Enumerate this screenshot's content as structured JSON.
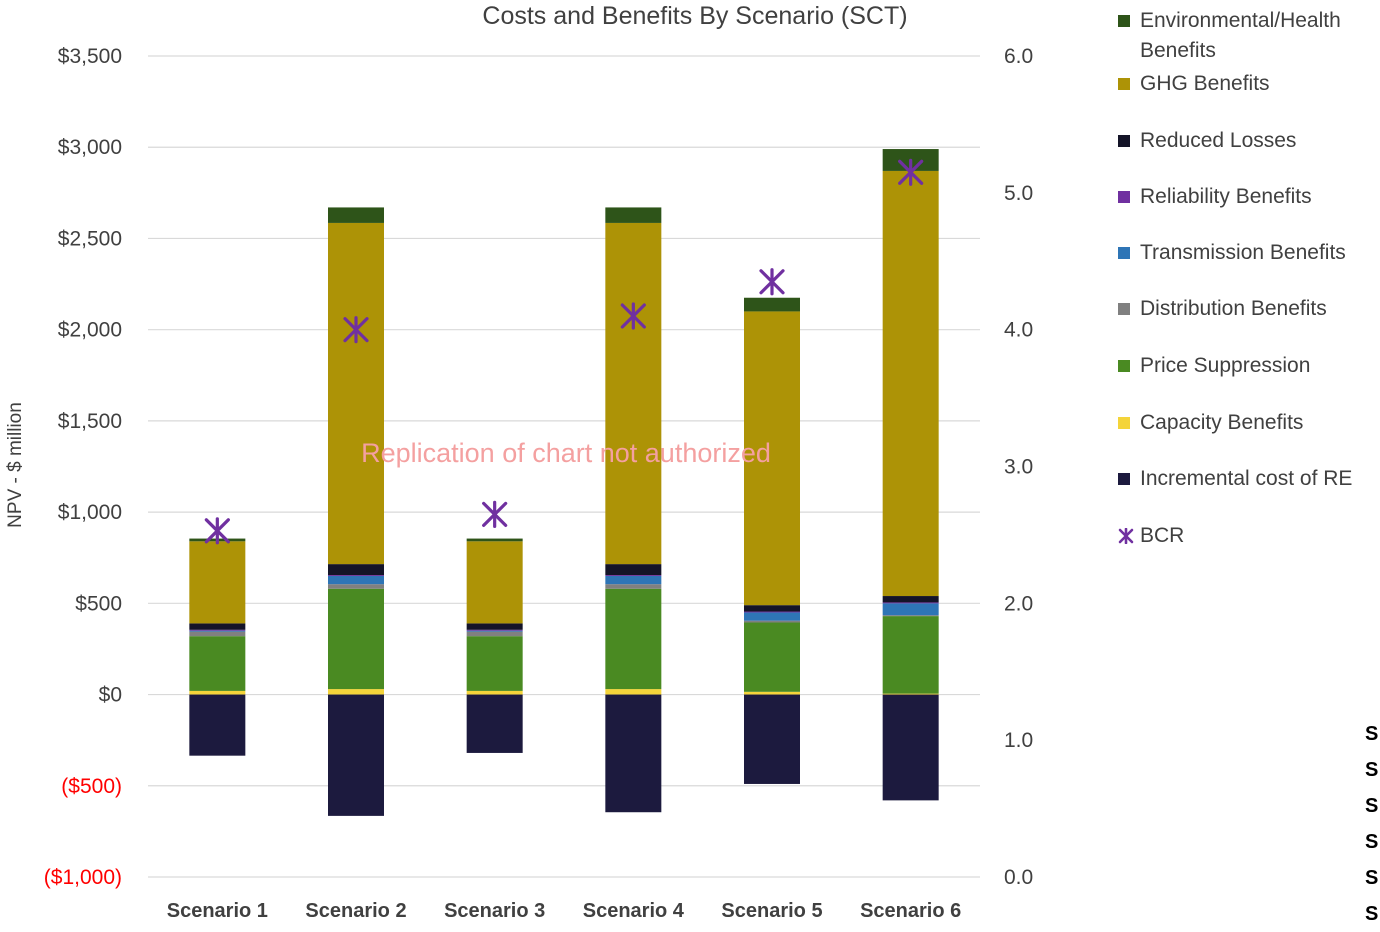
{
  "chart_data": {
    "type": "bar",
    "stacked": true,
    "title": "Costs and Benefits By Scenario (SCT)",
    "ylabel": "NPV - $ million",
    "ylim": [
      -1000,
      3500
    ],
    "y2lim": [
      0.0,
      6.0
    ],
    "y_ticks": [
      -1000,
      -500,
      0,
      500,
      1000,
      1500,
      2000,
      2500,
      3000,
      3500
    ],
    "y_tick_labels": [
      "($1,000)",
      "($500)",
      "$0",
      "$500",
      "$1,000",
      "$1,500",
      "$2,000",
      "$2,500",
      "$3,000",
      "$3,500"
    ],
    "y2_tick_labels": [
      "0.0",
      "1.0",
      "2.0",
      "3.0",
      "4.0",
      "5.0",
      "6.0"
    ],
    "y2_ticks": [
      0,
      1,
      2,
      3,
      4,
      5,
      6
    ],
    "categories": [
      "Scenario 1",
      "Scenario 2",
      "Scenario 3",
      "Scenario 4",
      "Scenario 5",
      "Scenario 6"
    ],
    "grid": true,
    "legend_position": "right",
    "series": [
      {
        "name": "Capacity Benefits",
        "color": "#f4d43a",
        "values": [
          20,
          30,
          20,
          30,
          15,
          5
        ]
      },
      {
        "name": "Price Suppression",
        "color": "#4a8a22",
        "values": [
          300,
          550,
          300,
          550,
          380,
          425
        ]
      },
      {
        "name": "Distribution Benefits",
        "color": "#808080",
        "values": [
          25,
          25,
          25,
          25,
          10,
          5
        ]
      },
      {
        "name": "Transmission Benefits",
        "color": "#2e75b6",
        "values": [
          5,
          45,
          5,
          45,
          45,
          65
        ]
      },
      {
        "name": "Reliability Benefits",
        "color": "#7030a0",
        "values": [
          5,
          5,
          5,
          5,
          5,
          5
        ]
      },
      {
        "name": "Reduced Losses",
        "color": "#141428",
        "values": [
          35,
          60,
          35,
          60,
          35,
          35
        ]
      },
      {
        "name": "GHG Benefits",
        "color": "#ad9306",
        "values": [
          450,
          1870,
          450,
          1870,
          1610,
          2330
        ]
      },
      {
        "name": "Environmental/Health Benefits",
        "color": "#2e5419",
        "values": [
          15,
          85,
          15,
          85,
          75,
          120
        ]
      },
      {
        "name": "Incremental cost of RE",
        "color": "#1c1a3e",
        "values": [
          -335,
          -665,
          -320,
          -645,
          -490,
          -580
        ]
      }
    ],
    "bcr": {
      "name": "BCR",
      "color": "#7030a0",
      "values": [
        2.53,
        4.0,
        2.65,
        4.1,
        4.35,
        5.15
      ]
    },
    "legend_order": [
      "Environmental/Health Benefits",
      "GHG Benefits",
      "Reduced Losses",
      "Reliability Benefits",
      "Transmission Benefits",
      "Distribution Benefits",
      "Price Suppression",
      "Capacity Benefits",
      "Incremental cost of RE",
      "BCR"
    ],
    "annotation": "Replication of chart not authorized"
  },
  "stray_text": [
    "S",
    "S",
    "S",
    "S",
    "S",
    "S"
  ]
}
